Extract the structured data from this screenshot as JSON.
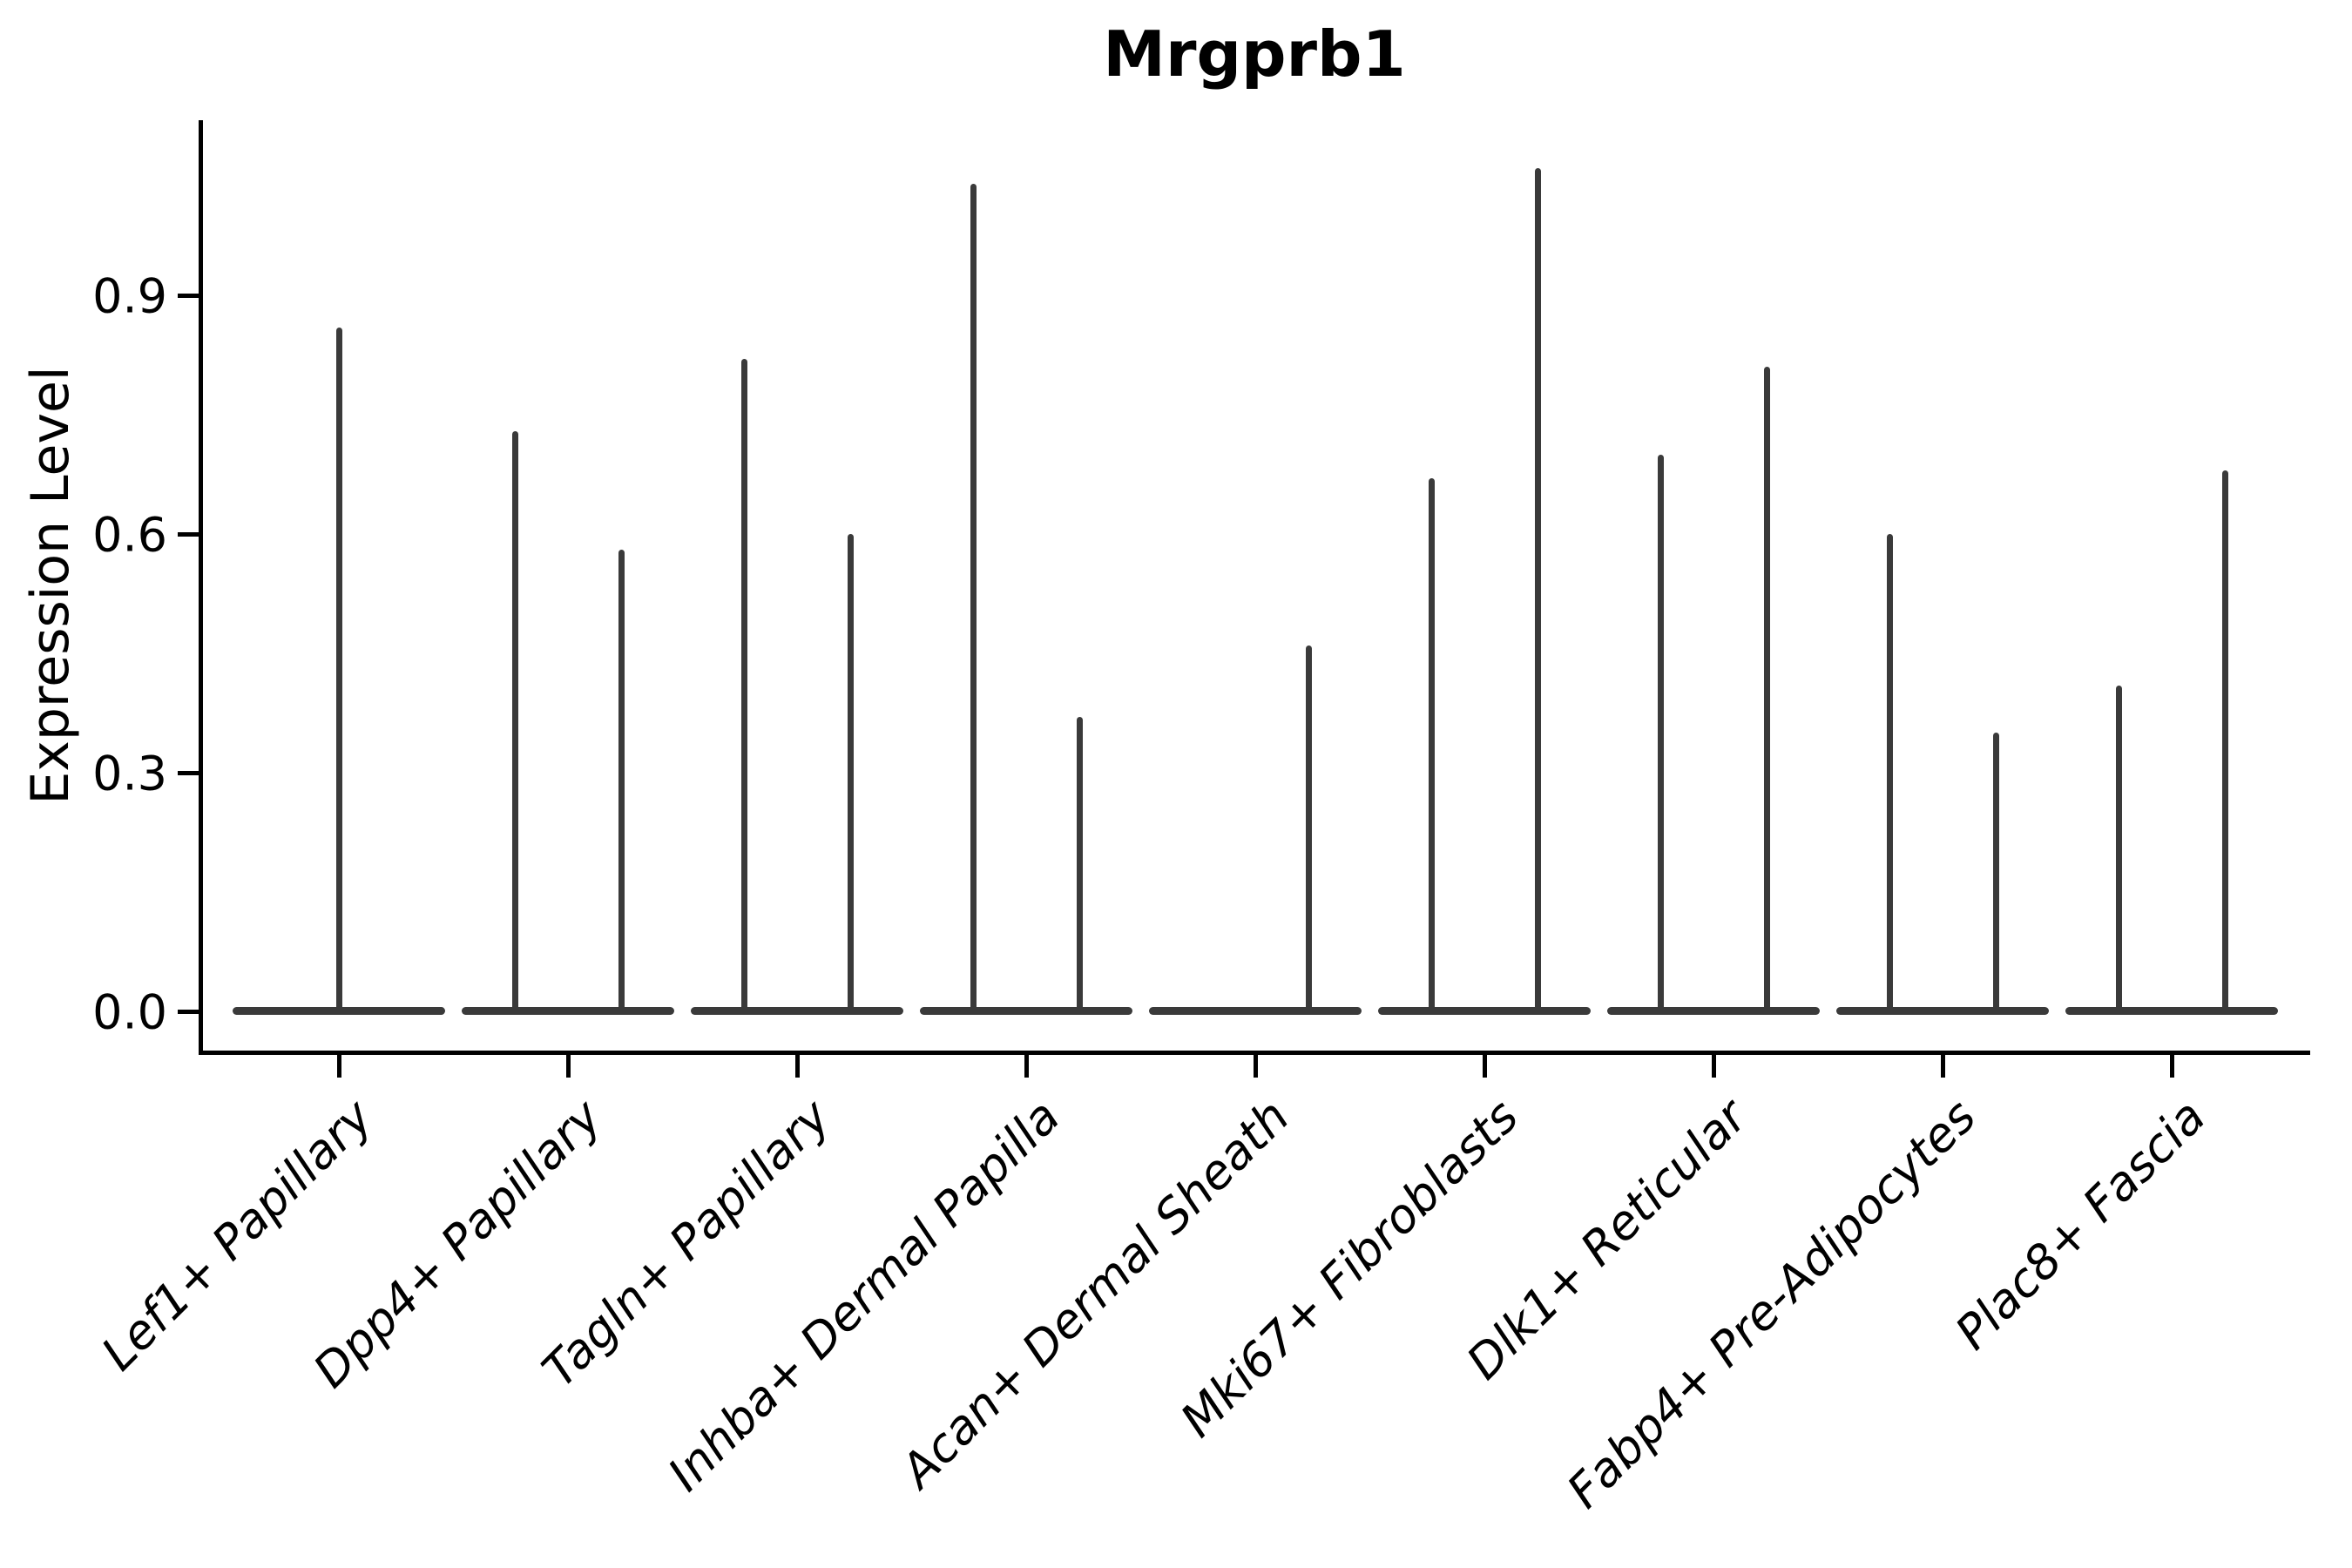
{
  "chart_data": {
    "type": "violin",
    "title": "Mrgprb1",
    "ylabel": "Expression Level",
    "xlabel": "",
    "ylim": [
      0,
      1.12
    ],
    "yticks": [
      "0.0",
      "0.3",
      "0.6",
      "0.9"
    ],
    "ytick_values": [
      0.0,
      0.3,
      0.6,
      0.9
    ],
    "grid": false,
    "legend": "none",
    "violin_color": "#3a3a3a",
    "axis_color": "#000000",
    "categories": [
      "Lef1+ Papillary",
      "Dpp4+ Papillary",
      "Tagln+ Papillary",
      "Inhba+ Dermal Papilla",
      "Acan+ Dermal Sheath",
      "Mki67+ Fibroblasts",
      "Dlk1+ Reticular",
      "Fabp4+ Pre-Adipocytes",
      "Plac8+ Fascia"
    ],
    "violins": [
      {
        "category": "Lef1+ Papillary",
        "spikes": [
          {
            "slot": "center",
            "max_expression": 0.86
          }
        ]
      },
      {
        "category": "Dpp4+ Papillary",
        "spikes": [
          {
            "slot": "left",
            "max_expression": 0.73
          },
          {
            "slot": "right",
            "max_expression": 0.58
          }
        ]
      },
      {
        "category": "Tagln+ Papillary",
        "spikes": [
          {
            "slot": "left",
            "max_expression": 0.82
          },
          {
            "slot": "right",
            "max_expression": 0.6
          }
        ]
      },
      {
        "category": "Inhba+ Dermal Papilla",
        "spikes": [
          {
            "slot": "left",
            "max_expression": 1.04
          },
          {
            "slot": "right",
            "max_expression": 0.37
          }
        ]
      },
      {
        "category": "Acan+ Dermal Sheath",
        "spikes": [
          {
            "slot": "right",
            "max_expression": 0.46
          }
        ]
      },
      {
        "category": "Mki67+ Fibroblasts",
        "spikes": [
          {
            "slot": "left",
            "max_expression": 0.67
          },
          {
            "slot": "right",
            "max_expression": 1.06
          }
        ]
      },
      {
        "category": "Dlk1+ Reticular",
        "spikes": [
          {
            "slot": "left",
            "max_expression": 0.7
          },
          {
            "slot": "right",
            "max_expression": 0.81
          }
        ]
      },
      {
        "category": "Fabp4+ Pre-Adipocytes",
        "spikes": [
          {
            "slot": "left",
            "max_expression": 0.6
          },
          {
            "slot": "right",
            "max_expression": 0.35
          }
        ]
      },
      {
        "category": "Plac8+ Fascia",
        "spikes": [
          {
            "slot": "left",
            "max_expression": 0.41
          },
          {
            "slot": "right",
            "max_expression": 0.68
          }
        ]
      }
    ]
  }
}
